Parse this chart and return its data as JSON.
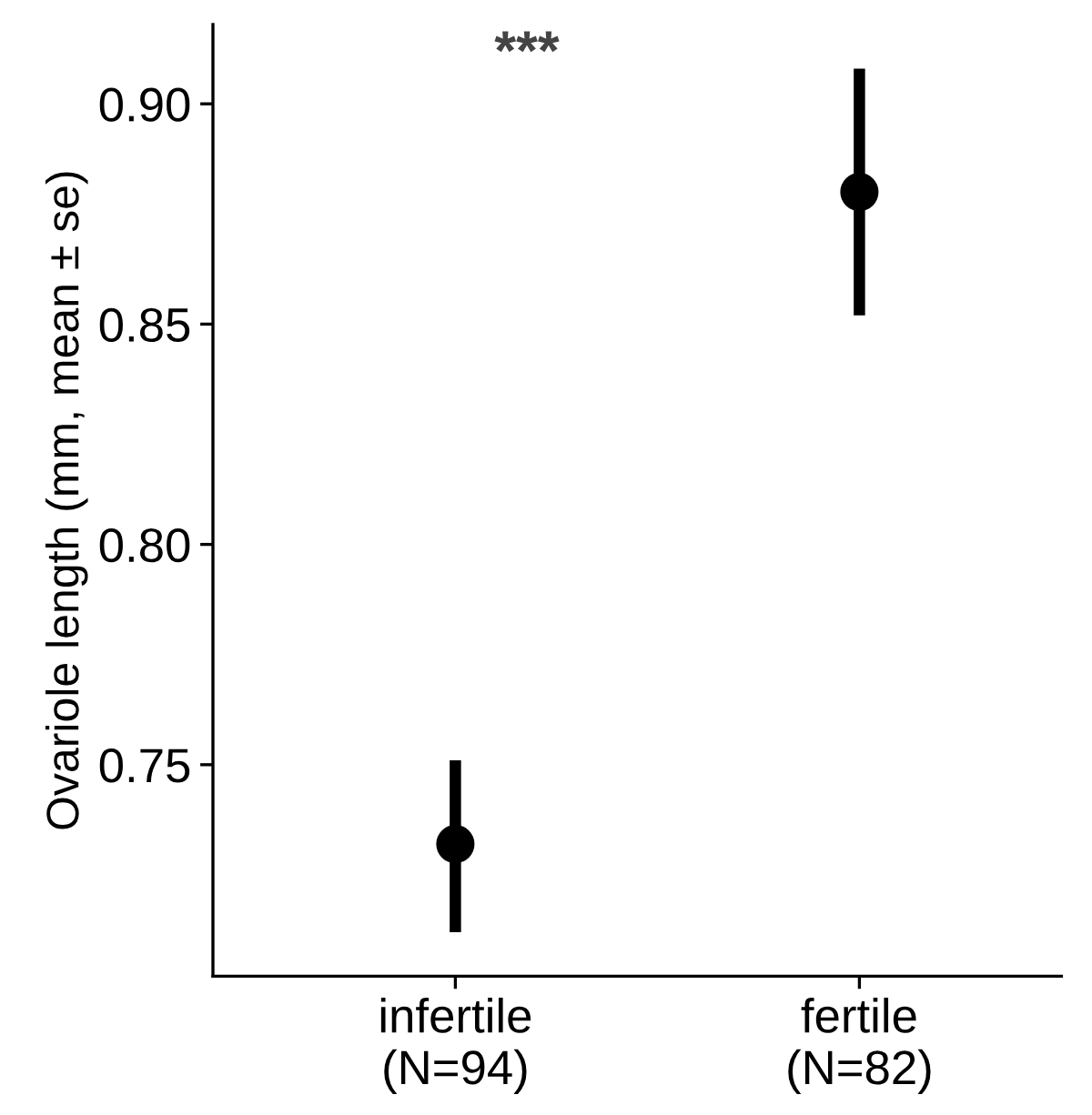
{
  "chart_data": {
    "type": "scatter",
    "ylabel": "Ovariole length (mm, mean ± se)",
    "categories": [
      "infertile\n(N=94)",
      "fertile\n(N=82)"
    ],
    "values": [
      0.732,
      0.88
    ],
    "errors": [
      [
        0.712,
        0.751
      ],
      [
        0.852,
        0.908
      ]
    ],
    "color": "#000000",
    "marker": "circle",
    "ylim": [
      0.702,
      0.918
    ],
    "yticks": [
      {
        "value": 0.75,
        "label": "0.75"
      },
      {
        "value": 0.8,
        "label": "0.80"
      },
      {
        "value": 0.85,
        "label": "0.85"
      },
      {
        "value": 0.9,
        "label": "0.90"
      }
    ],
    "annotations": [
      "***"
    ],
    "grid": false,
    "legend": false
  }
}
